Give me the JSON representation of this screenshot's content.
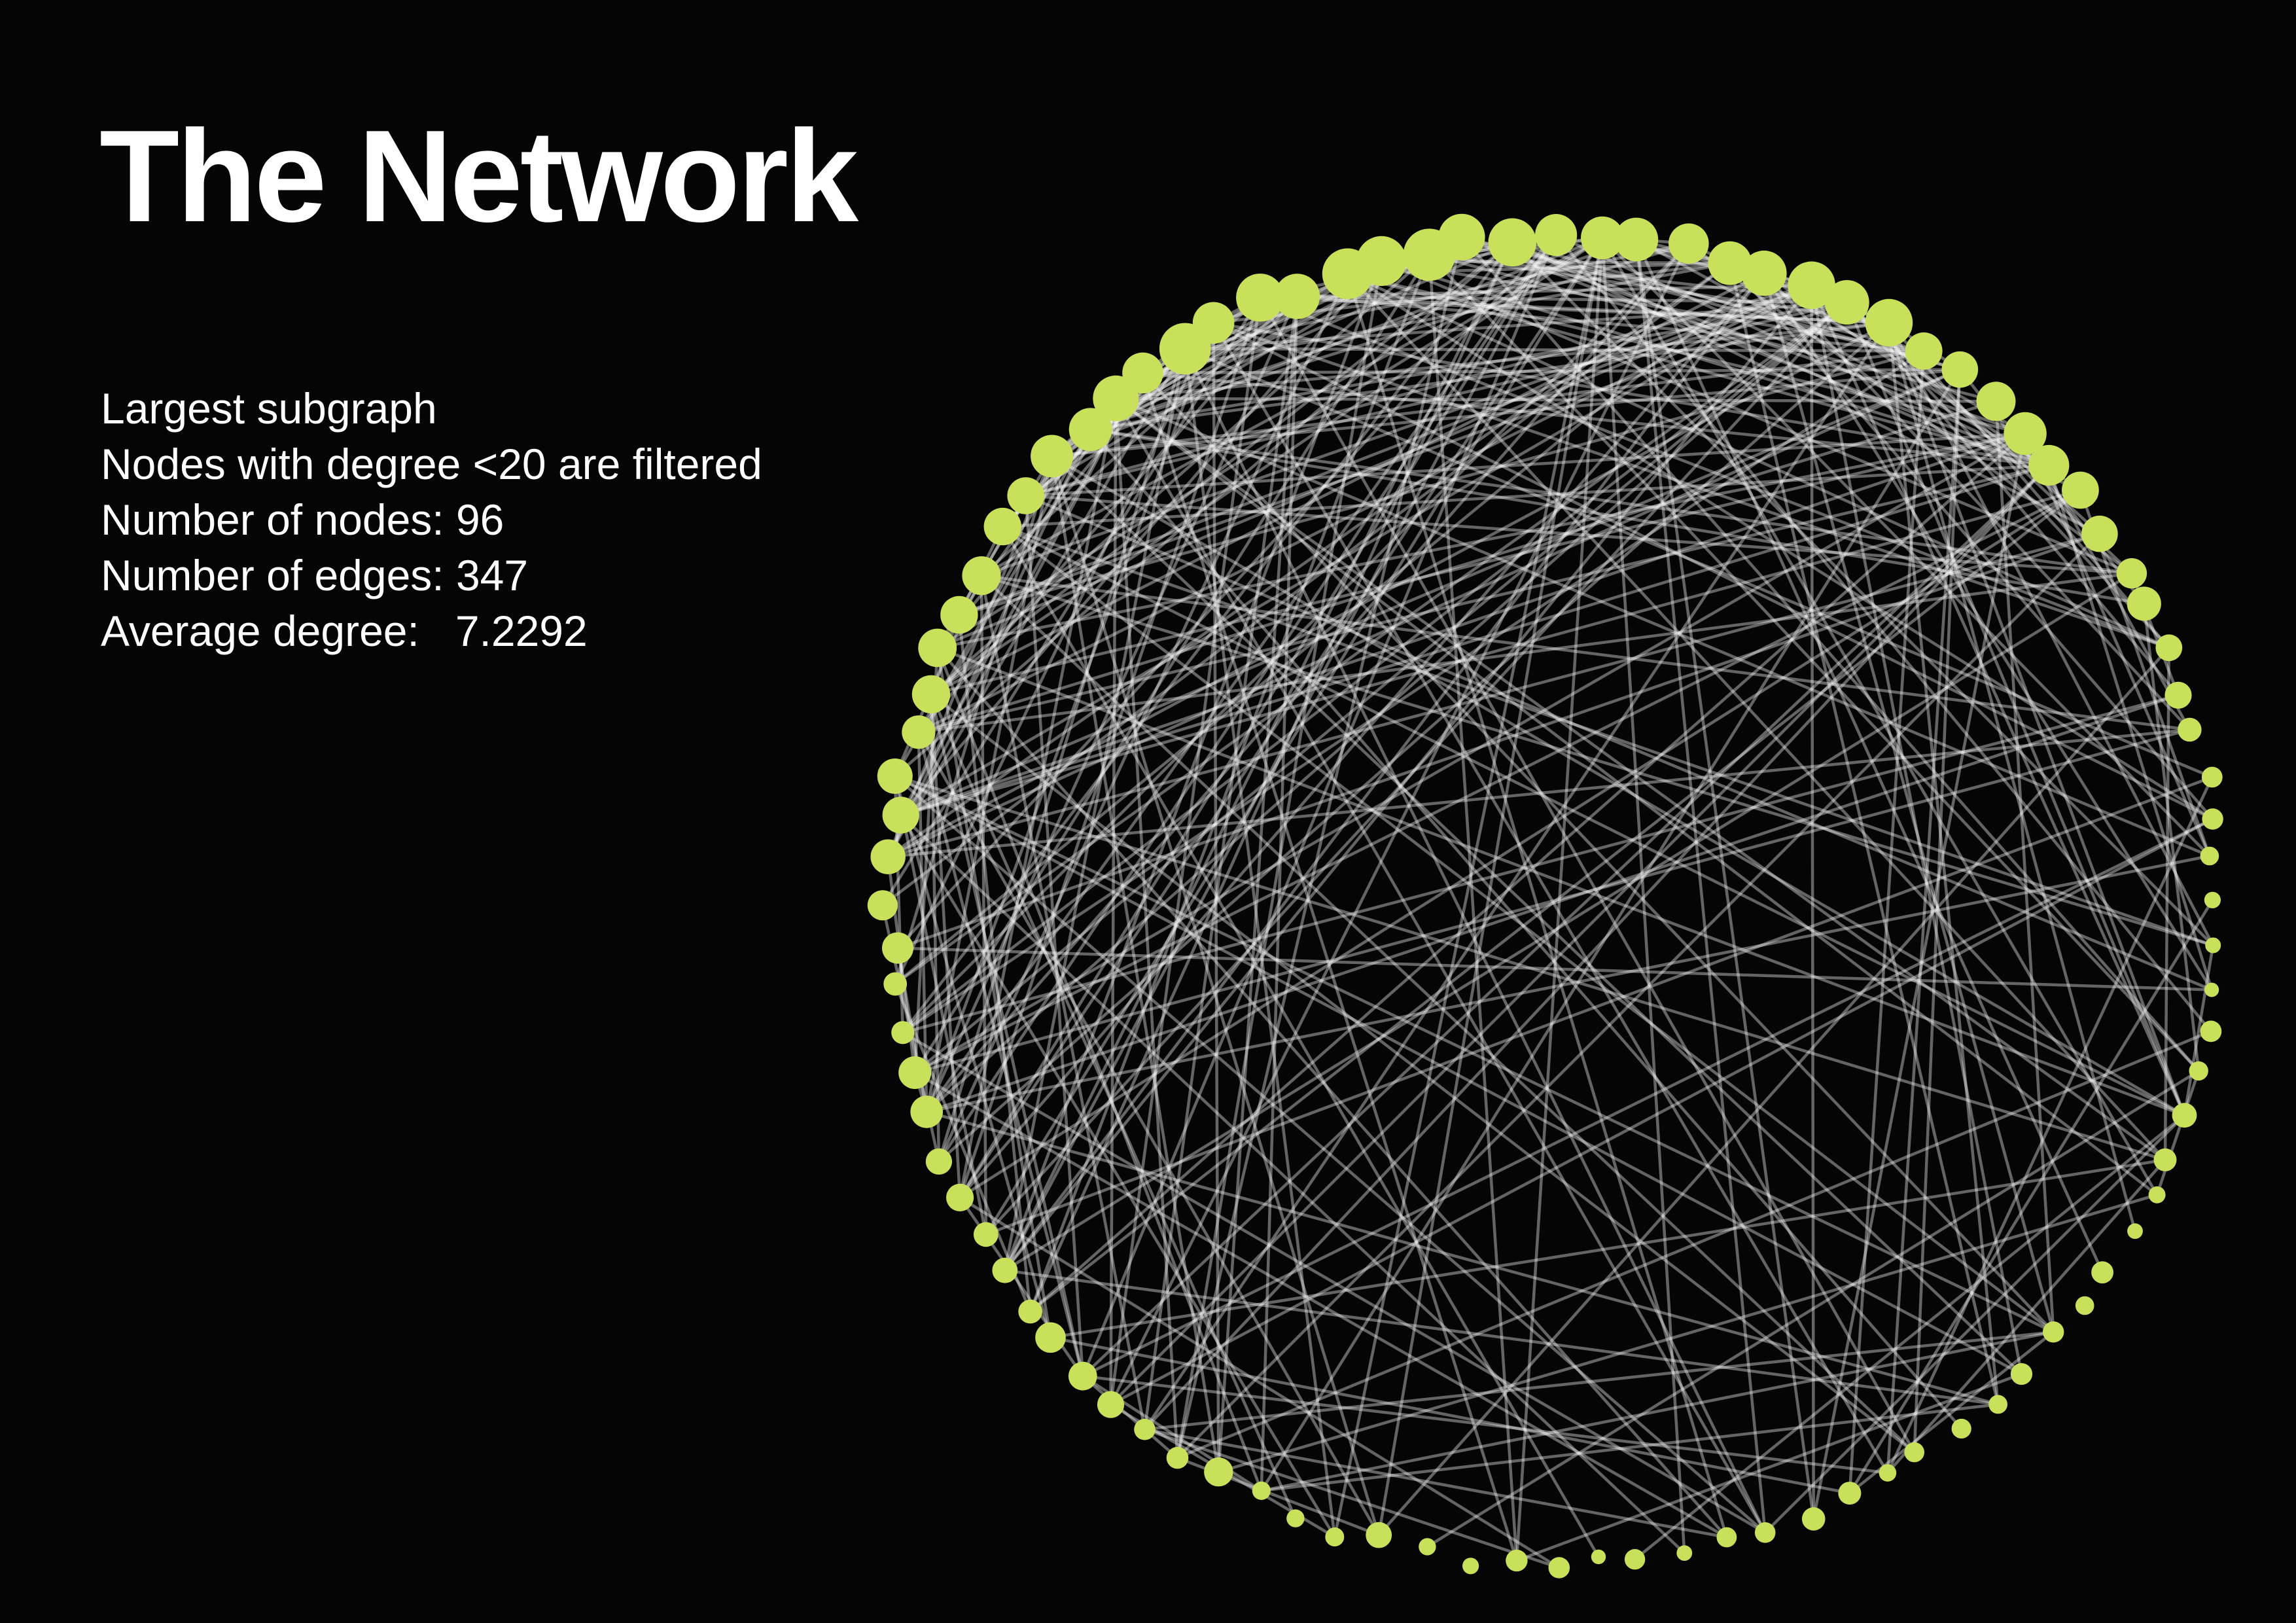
{
  "header": {
    "title": "The Network"
  },
  "stats": [
    "Largest subgraph",
    "Nodes with degree <20 are filtered",
    "Number of nodes: 96",
    "Number of edges: 347",
    "Average degree:   7.2292"
  ],
  "network": {
    "layout": "circular",
    "node_count": 96,
    "edge_count": 347,
    "average_degree": 7.2292,
    "colors": {
      "background": "#050505",
      "node": "#c8e05a",
      "edge": "#ffffff"
    }
  }
}
